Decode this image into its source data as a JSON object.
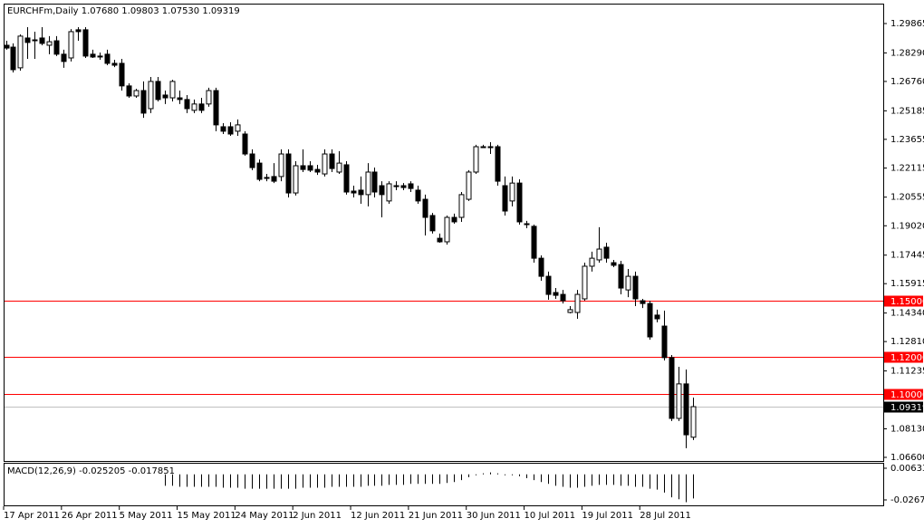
{
  "chart_data": [
    {
      "type": "candlestick",
      "title": "EURCHFm,Daily  1.07680 1.09803 1.07530 1.09319",
      "categories": [
        "17 Apr 2011",
        null,
        null,
        null,
        null,
        null,
        null,
        null,
        "26 Apr 2011",
        null,
        null,
        null,
        null,
        null,
        null,
        null,
        "5 May 2011",
        null,
        null,
        null,
        null,
        null,
        null,
        null,
        "15 May 2011",
        null,
        null,
        null,
        null,
        null,
        null,
        null,
        "24 May 2011",
        null,
        null,
        null,
        null,
        null,
        null,
        null,
        "2 Jun 2011",
        null,
        null,
        null,
        null,
        null,
        null,
        null,
        "12 Jun 2011",
        null,
        null,
        null,
        null,
        null,
        null,
        null,
        "21 Jun 2011",
        null,
        null,
        null,
        null,
        null,
        null,
        null,
        "30 Jun 2011",
        null,
        null,
        null,
        null,
        null,
        null,
        null,
        "10 Jul 2011",
        null,
        null,
        null,
        null,
        null,
        null,
        null,
        "19 Jul 2011",
        null,
        null,
        null,
        null,
        null,
        null,
        null,
        "28 Jul 2011",
        null,
        null,
        null,
        null,
        null,
        null,
        null
      ],
      "open": [
        1.287,
        1.286,
        1.2749,
        1.2909,
        1.2899,
        1.2909,
        1.287,
        1.2894,
        1.2822,
        1.2802,
        1.2953,
        1.2953,
        1.2822,
        1.2812,
        1.2822,
        1.2773,
        1.2773,
        1.2652,
        1.2598,
        1.2627,
        1.253,
        1.2676,
        1.2603,
        1.2588,
        1.2588,
        1.2579,
        1.2521,
        1.2555,
        1.2555,
        1.2627,
        1.2433,
        1.2433,
        1.2409,
        1.2394,
        1.2287,
        1.2238,
        1.2161,
        1.2166,
        1.2166,
        1.2287,
        1.2078,
        1.2224,
        1.2224,
        1.2204,
        1.218,
        1.2287,
        1.219,
        1.2229,
        1.2088,
        1.2093,
        1.2069,
        1.219,
        1.2117,
        1.2035,
        1.2117,
        1.2117,
        1.2127,
        1.2093,
        1.2044,
        1.1957,
        1.1835,
        1.1816,
        1.1947,
        1.1947,
        1.2044,
        1.219,
        1.2326,
        1.2326,
        1.2326,
        1.2117,
        1.2035,
        1.2131,
        1.1913,
        1.1899,
        1.1728,
        1.1631,
        1.1544,
        1.1534,
        1.1437,
        1.1437,
        1.151,
        1.1685,
        1.1719,
        1.1787,
        1.1704,
        1.1694,
        1.1558,
        1.1631,
        1.15,
        1.1485,
        1.1423,
        1.1364,
        1.1195,
        1.0869,
        1.1054,
        1.0768
      ],
      "high": [
        1.2894,
        1.288,
        1.2928,
        1.2967,
        1.2943,
        1.2967,
        1.2919,
        1.2919,
        1.2846,
        1.2957,
        1.2967,
        1.2967,
        1.2846,
        1.2831,
        1.2846,
        1.2792,
        1.2797,
        1.2666,
        1.2637,
        1.2676,
        1.27,
        1.27,
        1.2627,
        1.2685,
        1.2627,
        1.2603,
        1.2579,
        1.2588,
        1.2642,
        1.2642,
        1.2452,
        1.2457,
        1.2472,
        1.2409,
        1.2312,
        1.2258,
        1.218,
        1.2238,
        1.2312,
        1.2312,
        1.2248,
        1.2312,
        1.2248,
        1.2229,
        1.2312,
        1.2312,
        1.2302,
        1.2248,
        1.2117,
        1.2166,
        1.2238,
        1.2214,
        1.2141,
        1.2141,
        1.2141,
        1.2131,
        1.2141,
        1.2117,
        1.2069,
        1.1971,
        1.186,
        1.1957,
        1.1967,
        1.2083,
        1.22,
        1.2336,
        1.2336,
        1.235,
        1.2336,
        1.2166,
        1.2166,
        1.2151,
        1.1928,
        1.1908,
        1.1743,
        1.1656,
        1.1568,
        1.1558,
        1.1471,
        1.1558,
        1.1704,
        1.1763,
        1.1894,
        1.1811,
        1.1719,
        1.1714,
        1.167,
        1.1656,
        1.151,
        1.15,
        1.1452,
        1.1447,
        1.1209,
        1.1146,
        1.1131,
        1.09803
      ],
      "low": [
        1.2846,
        1.2724,
        1.2734,
        1.2797,
        1.2797,
        1.287,
        1.2822,
        1.2812,
        1.2749,
        1.2783,
        1.2894,
        1.2802,
        1.2802,
        1.2792,
        1.2763,
        1.2753,
        1.2627,
        1.2588,
        1.2588,
        1.2481,
        1.2506,
        1.2569,
        1.2555,
        1.2569,
        1.2555,
        1.2506,
        1.2506,
        1.2506,
        1.254,
        1.2409,
        1.2394,
        1.2384,
        1.2384,
        1.2278,
        1.22,
        1.2141,
        1.2141,
        1.2131,
        1.2141,
        1.2054,
        1.2064,
        1.219,
        1.219,
        1.2175,
        1.2166,
        1.219,
        1.218,
        1.2069,
        1.2054,
        1.202,
        1.2006,
        1.2054,
        1.1947,
        1.202,
        1.2093,
        1.2093,
        1.2083,
        1.202,
        1.185,
        1.186,
        1.1811,
        1.1801,
        1.1913,
        1.1923,
        1.2035,
        1.218,
        1.2321,
        1.2287,
        1.2117,
        1.1957,
        1.2006,
        1.1908,
        1.1889,
        1.1704,
        1.1607,
        1.1505,
        1.151,
        1.1485,
        1.1432,
        1.1403,
        1.15,
        1.1656,
        1.1704,
        1.1704,
        1.168,
        1.1534,
        1.1519,
        1.1471,
        1.1461,
        1.1291,
        1.1384,
        1.118,
        1.0855,
        1.0855,
        1.0709,
        1.0753
      ],
      "close": [
        1.2855,
        1.2739,
        1.2919,
        1.2885,
        1.2895,
        1.288,
        1.2889,
        1.2822,
        1.2783,
        1.2943,
        1.2943,
        1.2812,
        1.2807,
        1.2807,
        1.2773,
        1.2763,
        1.2652,
        1.2598,
        1.2627,
        1.2506,
        1.2676,
        1.2579,
        1.2588,
        1.2676,
        1.2579,
        1.253,
        1.2555,
        1.2521,
        1.2627,
        1.2443,
        1.2409,
        1.2394,
        1.2443,
        1.2287,
        1.2214,
        1.2151,
        1.2156,
        1.2141,
        1.2287,
        1.2078,
        1.2224,
        1.2204,
        1.22,
        1.219,
        1.2287,
        1.2209,
        1.2238,
        1.2083,
        1.2078,
        1.2069,
        1.219,
        1.2083,
        1.2069,
        1.2127,
        1.2112,
        1.2107,
        1.2102,
        1.2035,
        1.1947,
        1.1875,
        1.1816,
        1.1947,
        1.1923,
        1.2069,
        1.219,
        1.2326,
        1.2321,
        1.2321,
        1.2141,
        1.1981,
        1.2131,
        1.1923,
        1.1908,
        1.1728,
        1.1631,
        1.1534,
        1.1529,
        1.15,
        1.1452,
        1.1534,
        1.1685,
        1.1728,
        1.1777,
        1.1728,
        1.169,
        1.1568,
        1.1631,
        1.151,
        1.1485,
        1.1306,
        1.1403,
        1.1195,
        1.0869,
        1.1054,
        1.0781,
        1.09319
      ],
      "up_color": "#ffffff",
      "down_color": "#000000",
      "ylim": [
        1.06406,
        1.30933
      ],
      "yticks": [
        1.29865,
        {
          "value": 1.2829,
          "label": "1.28290"
        },
        {
          "value": 1.2676,
          "label": "1.26760"
        },
        1.25185,
        1.23655,
        1.22115,
        1.20555,
        {
          "value": 1.1902,
          "label": "1.19020"
        },
        1.17445,
        1.15915,
        {
          "value": 1.1434,
          "label": "1.14340"
        },
        {
          "value": 1.1281,
          "label": "1.12810"
        },
        1.11235,
        {
          "value": 1.0813,
          "label": "1.08130"
        },
        {
          "value": 1.066,
          "label": "1.06600"
        }
      ],
      "hlines": [
        {
          "value": 1.15,
          "label": "1.15000",
          "color": "#ff0000"
        },
        {
          "value": 1.12,
          "label": "1.12000",
          "color": "#ff0000"
        },
        {
          "value": 1.1,
          "label": "1.10000",
          "color": "#ff0000"
        },
        {
          "value": 1.09319,
          "label": "1.09319",
          "color": "#c0c0c0"
        }
      ]
    },
    {
      "type": "bar",
      "title": "MACD(12,26,9) -0.025205 -0.017851",
      "values": [
        null,
        null,
        null,
        null,
        null,
        null,
        null,
        null,
        null,
        null,
        null,
        null,
        null,
        null,
        null,
        null,
        null,
        null,
        null,
        null,
        null,
        null,
        -0.012,
        -0.012,
        -0.013,
        -0.013,
        -0.013,
        -0.013,
        -0.013,
        -0.013,
        -0.014,
        -0.014,
        -0.014,
        -0.015,
        -0.015,
        -0.015,
        -0.015,
        -0.015,
        -0.015,
        -0.015,
        -0.015,
        -0.014,
        -0.014,
        -0.014,
        -0.014,
        -0.013,
        -0.013,
        -0.013,
        -0.013,
        -0.013,
        -0.012,
        -0.012,
        -0.012,
        -0.011,
        -0.011,
        -0.011,
        -0.01,
        -0.01,
        -0.01,
        -0.01,
        -0.01,
        -0.009,
        -0.008,
        -0.006,
        -0.003,
        -0.001,
        0.001,
        0.002,
        0.001,
        -0.001,
        -0.001,
        -0.002,
        -0.004,
        -0.006,
        -0.008,
        -0.01,
        -0.012,
        -0.013,
        -0.014,
        -0.014,
        -0.013,
        -0.012,
        -0.011,
        -0.011,
        -0.011,
        -0.012,
        -0.012,
        -0.013,
        -0.013,
        -0.015,
        -0.016,
        -0.019,
        -0.024,
        -0.026,
        -0.029,
        -0.025205
      ],
      "color": "#000000",
      "ylim": [
        -0.03236,
        0.012
      ],
      "yticks": [
        0.006334,
        {
          "value": -0.0267,
          "label": "-0.02670"
        }
      ]
    }
  ]
}
